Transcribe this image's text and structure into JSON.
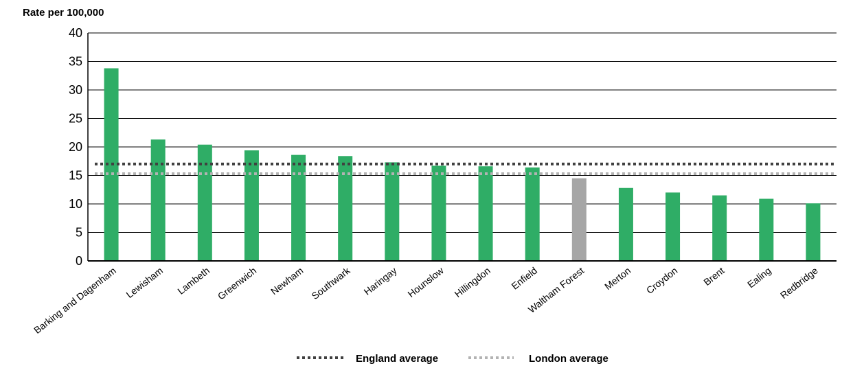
{
  "chart_data": {
    "type": "bar",
    "ylabel": "Rate per 100,000",
    "ylim": [
      0,
      40
    ],
    "yticks": [
      0,
      5,
      10,
      15,
      20,
      25,
      30,
      35,
      40
    ],
    "grid": true,
    "categories": [
      "Barking and Dagenham",
      "Lewisham",
      "Lambeth",
      "Greenwich",
      "Newham",
      "Southwark",
      "Haringay",
      "Hounslow",
      "Hillingdon",
      "Enfield",
      "Waltham Forest",
      "Merton",
      "Croydon",
      "Brent",
      "Ealing",
      "Redbridge"
    ],
    "values": [
      33.8,
      21.3,
      20.4,
      19.4,
      18.6,
      18.4,
      17.3,
      16.7,
      16.6,
      16.4,
      14.5,
      12.8,
      12.0,
      11.5,
      10.9,
      10.1
    ],
    "highlight_category": "Waltham Forest",
    "colors": {
      "bar": "#2fad66",
      "highlight": "#a6a6a6",
      "england_line": "#404040",
      "london_line": "#b3b3b3"
    },
    "reference_lines": [
      {
        "name": "England average",
        "value": 17.0,
        "style": "dotted",
        "color": "#404040"
      },
      {
        "name": "London average",
        "value": 15.3,
        "style": "dotted",
        "color": "#b3b3b3"
      }
    ],
    "legend_position": "bottom-center"
  }
}
